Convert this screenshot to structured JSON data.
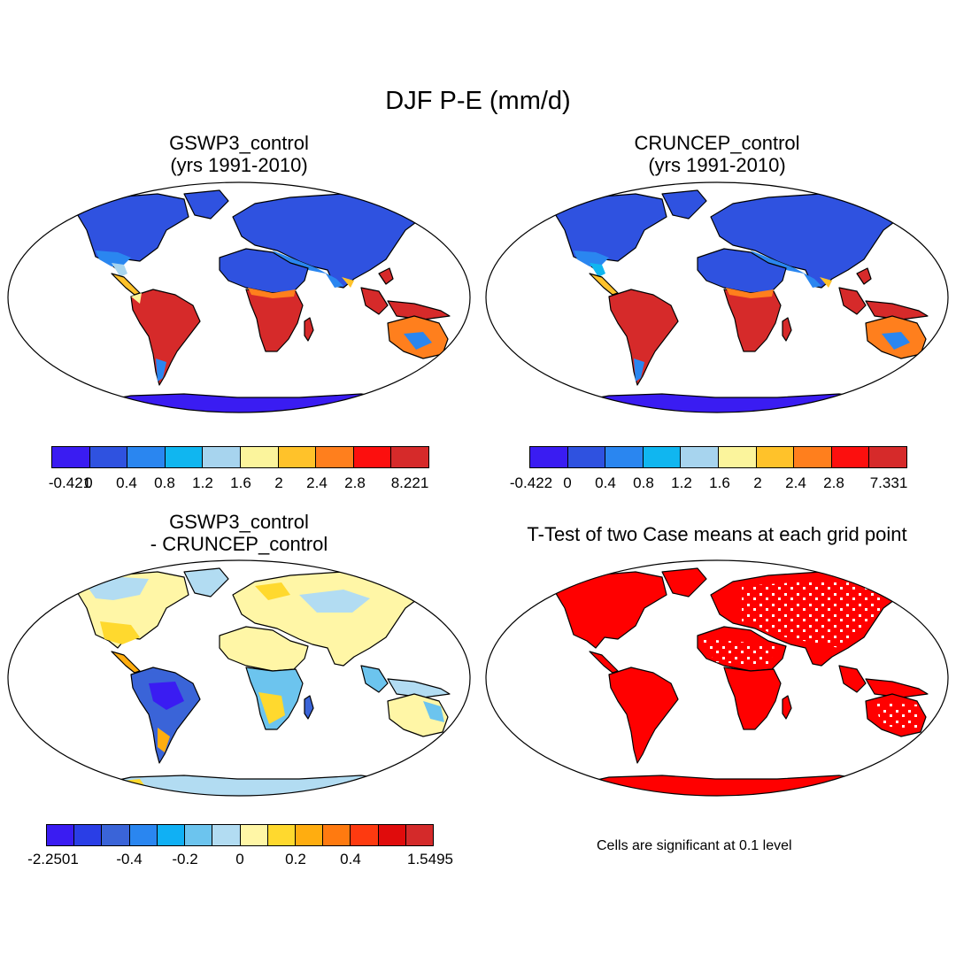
{
  "title": "DJF P-E (mm/d)",
  "panels": [
    {
      "id": "gswp3",
      "title_line1": "GSWP3_control",
      "title_line2": "(yrs 1991-2010)",
      "colorbar": {
        "colors": [
          "#3a1cf2",
          "#2f52e0",
          "#2a86f0",
          "#10b6f0",
          "#a7d4ee",
          "#fbf49c",
          "#ffc22a",
          "#ff7f1d",
          "#fc0f0e",
          "#d62a2a"
        ],
        "labels": [
          "-0.421",
          "0",
          "0.4",
          "0.8",
          "1.2",
          "1.6",
          "2",
          "2.4",
          "2.8",
          "8.221"
        ]
      }
    },
    {
      "id": "cruncep",
      "title_line1": "CRUNCEP_control",
      "title_line2": "(yrs 1991-2010)",
      "colorbar": {
        "colors": [
          "#3a1cf2",
          "#2f52e0",
          "#2a86f0",
          "#10b6f0",
          "#a7d4ee",
          "#fbf49c",
          "#ffc22a",
          "#ff7f1d",
          "#fc0f0e",
          "#d62a2a"
        ],
        "labels": [
          "-0.422",
          "0",
          "0.4",
          "0.8",
          "1.2",
          "1.6",
          "2",
          "2.4",
          "2.8",
          "7.331"
        ]
      }
    },
    {
      "id": "diff",
      "title_line1": "GSWP3_control",
      "title_line2": "- CRUNCEP_control",
      "colorbar": {
        "colors": [
          "#3a1cf2",
          "#2a3ee6",
          "#3a64d8",
          "#2a86f0",
          "#10b0f4",
          "#6cc4ee",
          "#b2dcf2",
          "#fff6a6",
          "#ffd92e",
          "#ffad10",
          "#ff7a10",
          "#fe3a10",
          "#e00c0c",
          "#d42a2a"
        ],
        "labels": [
          "-2.2501",
          "-0.4",
          "-0.2",
          "0",
          "0.2",
          "0.4",
          "1.5495"
        ]
      }
    },
    {
      "id": "ttest",
      "title_line1": "T-Test of two Case means at each grid point",
      "note": "Cells are significant at 0.1 level",
      "colors": {
        "significant": "#ff0000"
      }
    }
  ]
}
